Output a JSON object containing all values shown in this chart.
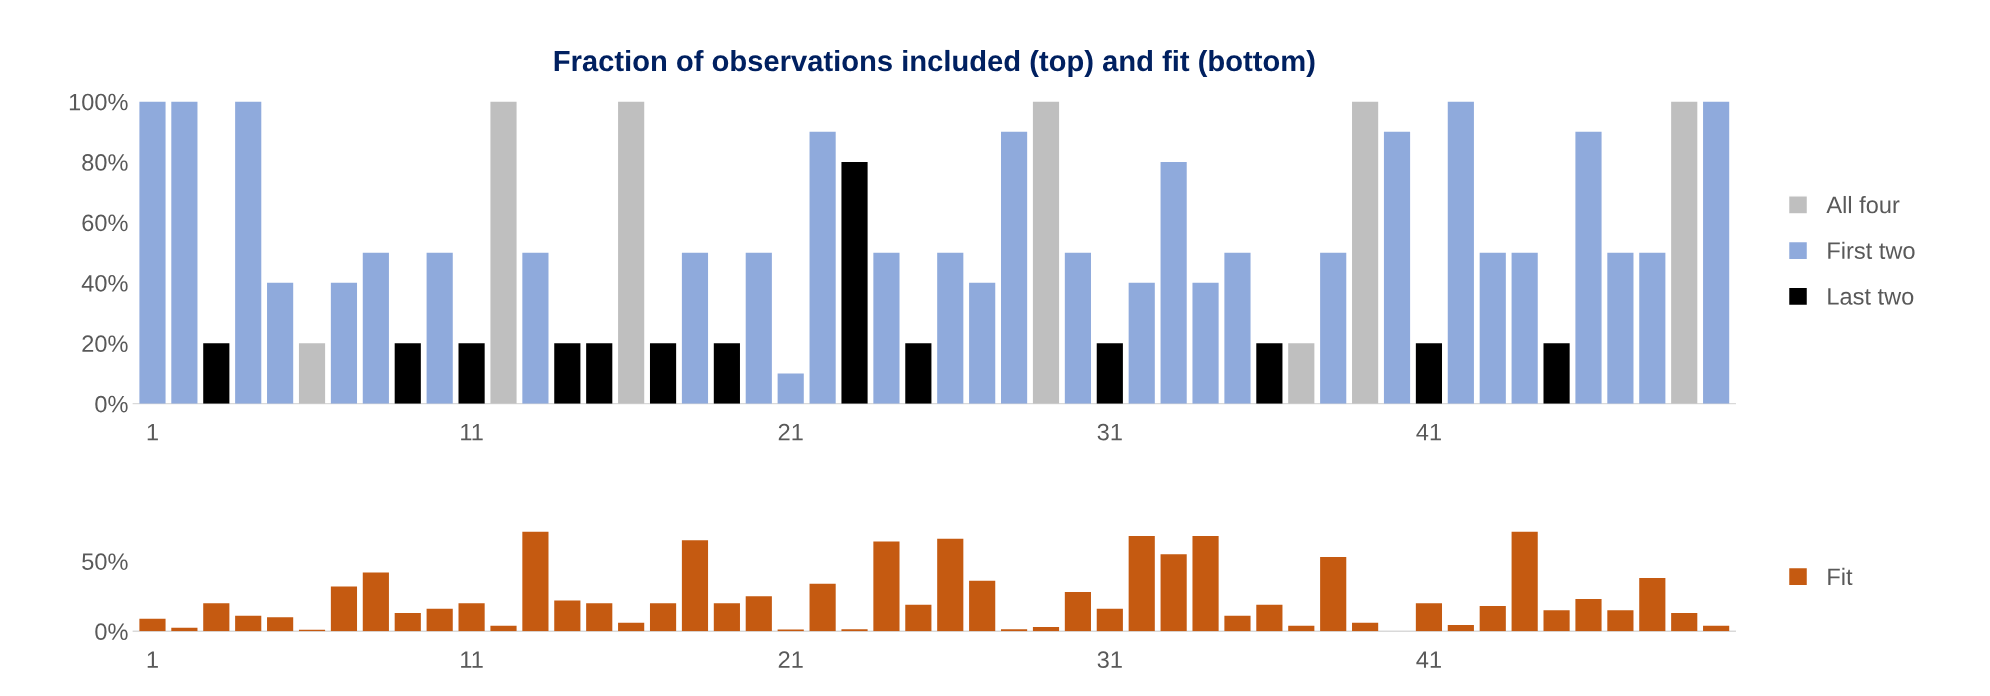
{
  "chart_data": [
    {
      "type": "bar",
      "title": "Fraction of observations included (top) and fit (bottom)",
      "legend": "right",
      "grid": false,
      "categories": [
        "1",
        null,
        null,
        null,
        null,
        null,
        null,
        null,
        null,
        null,
        "11",
        null,
        null,
        null,
        null,
        null,
        null,
        null,
        null,
        null,
        "21",
        null,
        null,
        null,
        null,
        null,
        null,
        null,
        null,
        null,
        "31",
        null,
        null,
        null,
        null,
        null,
        null,
        null,
        null,
        null,
        "41",
        null,
        null,
        null,
        null,
        null,
        null,
        null,
        null,
        null
      ],
      "ylim": [
        0,
        100
      ],
      "yticks": [
        {
          "value": 0,
          "label": "0%"
        },
        {
          "value": 20,
          "label": "20%"
        },
        {
          "value": 40,
          "label": "40%"
        },
        {
          "value": 60,
          "label": "60%"
        },
        {
          "value": 80,
          "label": "80%"
        },
        {
          "value": 100,
          "label": "100%"
        }
      ],
      "series": [
        {
          "name": "All four",
          "color": "#bfbfbf",
          "values": [
            null,
            null,
            null,
            null,
            null,
            20,
            null,
            null,
            null,
            null,
            null,
            100,
            null,
            null,
            null,
            100,
            null,
            null,
            null,
            null,
            null,
            null,
            null,
            null,
            null,
            null,
            null,
            null,
            100,
            null,
            null,
            null,
            null,
            null,
            null,
            null,
            20,
            null,
            100,
            null,
            null,
            null,
            null,
            null,
            null,
            null,
            null,
            null,
            100,
            null
          ]
        },
        {
          "name": "First two",
          "color": "#8faadc",
          "values": [
            100,
            100,
            null,
            100,
            40,
            null,
            40,
            50,
            null,
            50,
            null,
            null,
            50,
            null,
            null,
            null,
            null,
            50,
            null,
            50,
            10,
            90,
            null,
            50,
            null,
            50,
            40,
            90,
            null,
            50,
            null,
            40,
            80,
            40,
            50,
            null,
            null,
            50,
            null,
            90,
            null,
            100,
            50,
            50,
            null,
            90,
            50,
            50,
            null,
            100
          ]
        },
        {
          "name": "Last two",
          "color": "#000000",
          "values": [
            null,
            null,
            20,
            null,
            null,
            null,
            null,
            null,
            20,
            null,
            20,
            null,
            null,
            20,
            20,
            null,
            20,
            null,
            20,
            null,
            null,
            null,
            80,
            null,
            20,
            null,
            null,
            null,
            null,
            null,
            20,
            null,
            null,
            null,
            null,
            20,
            null,
            null,
            null,
            null,
            20,
            null,
            null,
            null,
            20,
            null,
            null,
            null,
            null,
            null
          ]
        }
      ]
    },
    {
      "type": "bar",
      "legend": "right",
      "grid": false,
      "categories": [
        "1",
        null,
        null,
        null,
        null,
        null,
        null,
        null,
        null,
        null,
        "11",
        null,
        null,
        null,
        null,
        null,
        null,
        null,
        null,
        null,
        "21",
        null,
        null,
        null,
        null,
        null,
        null,
        null,
        null,
        null,
        "31",
        null,
        null,
        null,
        null,
        null,
        null,
        null,
        null,
        null,
        "41",
        null,
        null,
        null,
        null,
        null,
        null,
        null,
        null,
        null
      ],
      "ylim": [
        0,
        75
      ],
      "yticks": [
        {
          "value": 0,
          "label": "0%"
        },
        {
          "value": 50,
          "label": "50%"
        }
      ],
      "series": [
        {
          "name": "Fit",
          "color": "#c55a11",
          "values": [
            9,
            2.6,
            20,
            11,
            10,
            1,
            32,
            42,
            13,
            16,
            20,
            4,
            71,
            22,
            20,
            6,
            20,
            65,
            20,
            25,
            1.3,
            34,
            1.4,
            64,
            19,
            66,
            36,
            1.4,
            3,
            28,
            16,
            68,
            55,
            68,
            11,
            19,
            4,
            53,
            6,
            null,
            20,
            4.5,
            18,
            71,
            15,
            23,
            15,
            38,
            13,
            4
          ]
        }
      ]
    }
  ]
}
